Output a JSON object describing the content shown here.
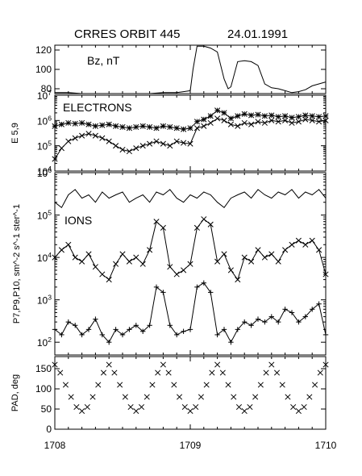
{
  "title": "CRRES ORBIT 445",
  "date": "24.01.1991",
  "x_ticks": [
    "1708",
    "1709",
    "1710"
  ],
  "chart_data": [
    {
      "type": "line",
      "panel": "bz",
      "label": "Bz, nT",
      "ylabel": "",
      "ylim": [
        75,
        125
      ],
      "y_ticks": [
        80,
        100,
        120
      ],
      "x": [
        1708.0,
        1708.1,
        1708.2,
        1708.3,
        1708.4,
        1708.5,
        1708.6,
        1708.7,
        1708.8,
        1708.9,
        1708.95,
        1709.0,
        1709.02,
        1709.05,
        1709.1,
        1709.15,
        1709.2,
        1709.25,
        1709.28,
        1709.3,
        1709.35,
        1709.4,
        1709.45,
        1709.5,
        1709.55,
        1709.6,
        1709.65,
        1709.7,
        1709.75,
        1709.8,
        1709.85,
        1709.9,
        1709.95,
        1710.0
      ],
      "series": [
        {
          "values": [
            76,
            76,
            75,
            75,
            75,
            75,
            75,
            75,
            76,
            76,
            77,
            78,
            100,
            124,
            124,
            122,
            118,
            90,
            80,
            82,
            108,
            109,
            108,
            104,
            85,
            81,
            80,
            78,
            76,
            77,
            79,
            83,
            85,
            87
          ]
        }
      ]
    },
    {
      "type": "line",
      "panel": "electrons",
      "label": "ELECTRONS",
      "ylabel": "E 5,9",
      "yscale": "log",
      "ylim": [
        10000,
        10000000
      ],
      "y_ticks": [
        "10^4",
        "10^5",
        "10^6",
        "10^7"
      ],
      "x": [
        1708.0,
        1708.05,
        1708.1,
        1708.15,
        1708.2,
        1708.25,
        1708.3,
        1708.35,
        1708.4,
        1708.45,
        1708.5,
        1708.55,
        1708.6,
        1708.65,
        1708.7,
        1708.75,
        1708.8,
        1708.85,
        1708.9,
        1708.95,
        1709.0,
        1709.05,
        1709.1,
        1709.15,
        1709.2,
        1709.25,
        1709.3,
        1709.35,
        1709.4,
        1709.45,
        1709.5,
        1709.55,
        1709.6,
        1709.65,
        1709.7,
        1709.75,
        1709.8,
        1709.85,
        1709.9,
        1709.95,
        1710.0
      ],
      "series": [
        {
          "marker": "*",
          "values": [
            600000,
            700000,
            800000,
            750000,
            800000,
            700000,
            600000,
            650000,
            700000,
            600000,
            550000,
            500000,
            550000,
            600000,
            550000,
            500000,
            600000,
            550000,
            500000,
            450000,
            500000,
            900000,
            1100000,
            1500000,
            2500000,
            2000000,
            1200000,
            1500000,
            1800000,
            1600000,
            1700000,
            1500000,
            1600000,
            1400000,
            1500000,
            1300000,
            1400000,
            1600000,
            1500000,
            1400000,
            1500000
          ]
        },
        {
          "marker": "x",
          "values": [
            30000,
            80000,
            150000,
            200000,
            250000,
            300000,
            250000,
            200000,
            150000,
            100000,
            70000,
            60000,
            80000,
            100000,
            120000,
            150000,
            120000,
            100000,
            150000,
            130000,
            120000,
            500000,
            600000,
            800000,
            1200000,
            1000000,
            700000,
            600000,
            800000,
            700000,
            900000,
            800000,
            1000000,
            900000,
            1000000,
            800000,
            900000,
            1100000,
            1000000,
            900000,
            1000000
          ]
        }
      ]
    },
    {
      "type": "line",
      "panel": "ions",
      "label": "IONS",
      "ylabel": "P7,P9,P10, sm^-2 s^-1 ster^-1",
      "yscale": "log",
      "ylim": [
        50,
        1000000
      ],
      "y_ticks": [
        "10^2",
        "10^3",
        "10^4",
        "10^5",
        "10^6"
      ],
      "x": [
        1708.0,
        1708.05,
        1708.1,
        1708.15,
        1708.2,
        1708.25,
        1708.3,
        1708.35,
        1708.4,
        1708.45,
        1708.5,
        1708.55,
        1708.6,
        1708.65,
        1708.7,
        1708.75,
        1708.8,
        1708.85,
        1708.9,
        1708.95,
        1709.0,
        1709.05,
        1709.1,
        1709.15,
        1709.2,
        1709.25,
        1709.3,
        1709.35,
        1709.4,
        1709.45,
        1709.5,
        1709.55,
        1709.6,
        1709.65,
        1709.7,
        1709.75,
        1709.8,
        1709.85,
        1709.9,
        1709.95,
        1710.0
      ],
      "series": [
        {
          "marker": "none",
          "values": [
            200000,
            150000,
            300000,
            400000,
            250000,
            300000,
            200000,
            350000,
            250000,
            300000,
            350000,
            200000,
            250000,
            300000,
            200000,
            350000,
            300000,
            400000,
            250000,
            200000,
            300000,
            250000,
            350000,
            300000,
            200000,
            150000,
            250000,
            300000,
            350000,
            250000,
            400000,
            300000,
            250000,
            350000,
            300000,
            400000,
            250000,
            350000,
            300000,
            400000,
            250000
          ]
        },
        {
          "marker": "x",
          "values": [
            10000,
            15000,
            20000,
            10000,
            8000,
            12000,
            6000,
            4000,
            3000,
            7000,
            12000,
            8000,
            10000,
            7000,
            15000,
            70000,
            50000,
            6000,
            4000,
            5000,
            7000,
            50000,
            80000,
            60000,
            8000,
            12000,
            5000,
            3000,
            10000,
            8000,
            15000,
            10000,
            12000,
            8000,
            15000,
            20000,
            25000,
            20000,
            25000,
            15000,
            4000
          ]
        },
        {
          "marker": "+",
          "values": [
            200,
            150,
            300,
            250,
            150,
            200,
            350,
            150,
            100,
            200,
            150,
            200,
            250,
            180,
            250,
            2000,
            1500,
            250,
            150,
            180,
            200,
            2000,
            2500,
            1500,
            150,
            200,
            100,
            200,
            300,
            250,
            350,
            300,
            400,
            300,
            600,
            500,
            300,
            400,
            600,
            800,
            150
          ]
        }
      ]
    },
    {
      "type": "scatter",
      "panel": "pad",
      "label": "",
      "ylabel": "PAD, deg",
      "ylim": [
        0,
        180
      ],
      "y_ticks": [
        0,
        50,
        100,
        150
      ],
      "x": [
        1708.0,
        1708.04,
        1708.08,
        1708.12,
        1708.16,
        1708.2,
        1708.24,
        1708.28,
        1708.32,
        1708.36,
        1708.4,
        1708.44,
        1708.48,
        1708.52,
        1708.56,
        1708.6,
        1708.64,
        1708.68,
        1708.72,
        1708.76,
        1708.8,
        1708.84,
        1708.88,
        1708.92,
        1708.96,
        1709.0,
        1709.04,
        1709.08,
        1709.12,
        1709.16,
        1709.2,
        1709.24,
        1709.28,
        1709.32,
        1709.36,
        1709.4,
        1709.44,
        1709.48,
        1709.52,
        1709.56,
        1709.6,
        1709.64,
        1709.68,
        1709.72,
        1709.76,
        1709.8,
        1709.84,
        1709.88,
        1709.92,
        1709.96,
        1710.0
      ],
      "series": [
        {
          "marker": "x",
          "values": [
            160,
            140,
            110,
            80,
            55,
            45,
            55,
            80,
            110,
            140,
            160,
            140,
            110,
            80,
            55,
            45,
            55,
            80,
            110,
            140,
            160,
            140,
            110,
            80,
            55,
            45,
            55,
            80,
            110,
            140,
            160,
            140,
            110,
            80,
            55,
            45,
            55,
            80,
            110,
            140,
            160,
            140,
            110,
            80,
            55,
            45,
            55,
            80,
            110,
            140,
            160
          ]
        }
      ]
    }
  ]
}
